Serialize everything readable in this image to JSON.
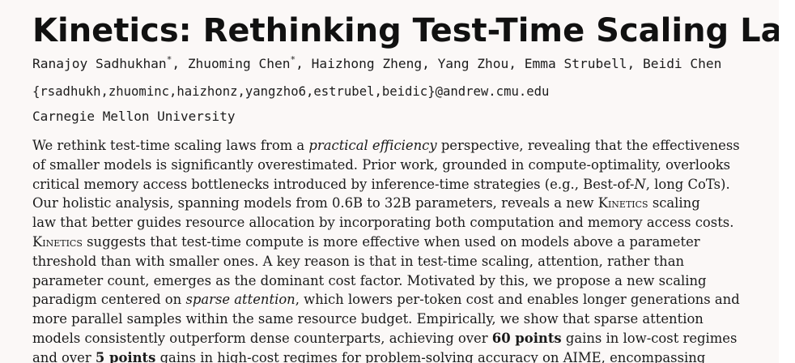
{
  "title": "Kinetics: Rethinking Test-Time Scaling Laws",
  "authors": {
    "a1": "Ranajoy Sadhukhan",
    "a1_mark": "*",
    "sep1": ", ",
    "a2": "Zhuoming Chen",
    "a2_mark": "*",
    "rest": ", Haizhong Zheng, Yang Zhou, Emma Strubell, Beidi Chen"
  },
  "emails": "{rsadhukh,zhuominc,haizhonz,yangzho6,estrubel,beidic}@andrew.cmu.edu",
  "affiliation": "Carnegie Mellon University",
  "abstract": {
    "l1a": " We rethink test-time scaling laws from a ",
    "l1b": "practical efficiency",
    "l1c": " perspective, revealing that the effectiveness",
    "l2": "of smaller models is significantly overestimated. Prior work, grounded in compute-optimality, overlooks",
    "l3a": "critical memory access bottlenecks introduced by inference-time strategies (e.g., Best-of-",
    "l3b": "N",
    "l3c": ", long CoTs).",
    "l4a": "Our holistic analysis, spanning models from 0.6B to 32B parameters, reveals a new ",
    "l4b": "Kinetics",
    "l4c": " scaling",
    "l5": "law that better guides resource allocation by incorporating both computation and memory access costs.",
    "l6a": "Kinetics",
    "l6b": " suggests that test-time compute is more effective when used on models above a parameter",
    "l7": "threshold than with smaller ones. A key reason is that in test-time scaling, attention, rather than",
    "l8": "parameter count, emerges as the dominant cost factor. Motivated by this, we propose a new scaling",
    "l9a": "paradigm centered on ",
    "l9b": "sparse attention",
    "l9c": ", which lowers per-token cost and enables longer generations and",
    "l10": "more parallel samples within the same resource budget. Empirically, we show that sparse attention",
    "l11a": "models consistently outperform dense counterparts, achieving over ",
    "l11b": "60 points",
    "l11c": " gains in low-cost regimes",
    "l12a": "and over ",
    "l12b": "5 points",
    "l12c": " gains in high-cost regimes for problem-solving accuracy on AIME, encompassing"
  }
}
